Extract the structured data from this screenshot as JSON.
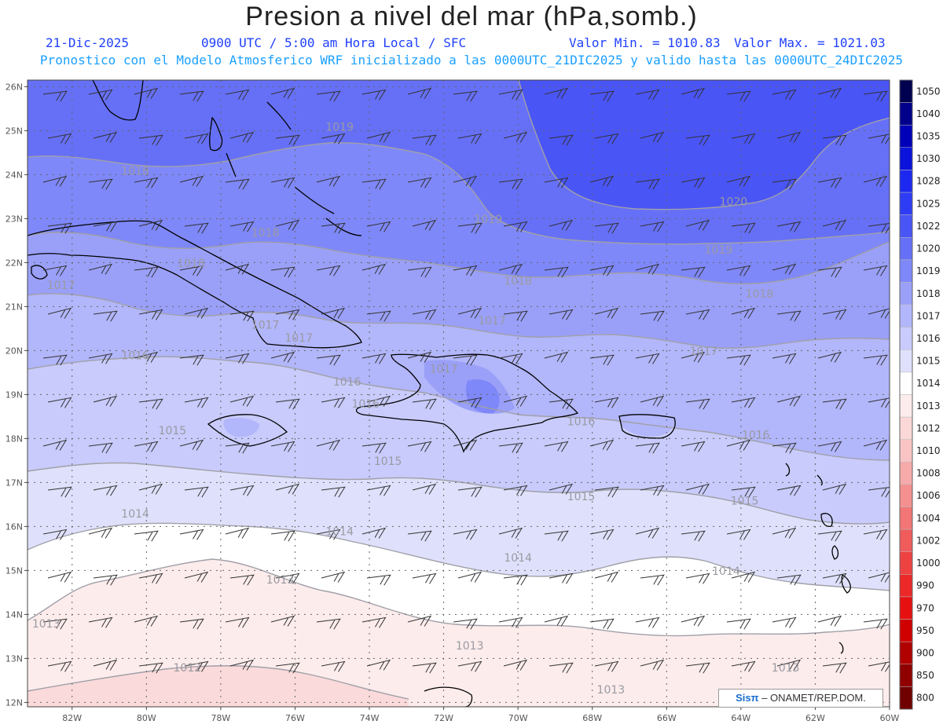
{
  "header": {
    "title": "Presion a nivel del mar (hPa,somb.)",
    "date": "21-Dic-2025",
    "time_info": "0900 UTC / 5:00 am Hora Local / SFC",
    "value_min": "Valor Min. = 1010.83",
    "value_max": "Valor Max. = 1021.03",
    "model_info": "Pronostico con el Modelo Atmosferico WRF inicializado a las 0000UTC_21DIC2025 y valido hasta las  0000UTC_24DIC2025"
  },
  "colors": {
    "title": "#222222",
    "subtitle_blue": "#2040ff",
    "subtitle_cyan": "#1aa0ff",
    "coast": "#000000",
    "contour": "#a0a0a8",
    "barb": "#333333",
    "grid": "#666666"
  },
  "map": {
    "lat_labels": [
      "26N",
      "25N",
      "24N",
      "23N",
      "22N",
      "21N",
      "20N",
      "19N",
      "18N",
      "17N",
      "16N",
      "15N",
      "14N",
      "13N",
      "12N"
    ],
    "lon_labels": [
      "82W",
      "80W",
      "78W",
      "76W",
      "74W",
      "72W",
      "70W",
      "68W",
      "66W",
      "64W",
      "62W",
      "60W"
    ],
    "contour_labels": [
      {
        "text": "1019",
        "lon": -74.8,
        "lat": 25.0
      },
      {
        "text": "1018",
        "lon": -80.3,
        "lat": 24.0
      },
      {
        "text": "1019",
        "lon": -70.8,
        "lat": 22.9
      },
      {
        "text": "1020",
        "lon": -64.2,
        "lat": 23.3
      },
      {
        "text": "1018",
        "lon": -76.8,
        "lat": 22.6
      },
      {
        "text": "1019",
        "lon": -64.6,
        "lat": 22.2
      },
      {
        "text": "1018",
        "lon": -78.8,
        "lat": 21.9
      },
      {
        "text": "1018",
        "lon": -70.0,
        "lat": 21.5
      },
      {
        "text": "1017",
        "lon": -82.3,
        "lat": 21.4
      },
      {
        "text": "1018",
        "lon": -63.5,
        "lat": 21.2
      },
      {
        "text": "1017",
        "lon": -70.7,
        "lat": 20.6
      },
      {
        "text": "1017",
        "lon": -76.8,
        "lat": 20.5
      },
      {
        "text": "1017",
        "lon": -75.9,
        "lat": 20.2
      },
      {
        "text": "1016",
        "lon": -80.3,
        "lat": 19.8
      },
      {
        "text": "1017",
        "lon": -65.0,
        "lat": 19.9
      },
      {
        "text": "1017",
        "lon": -72.0,
        "lat": 19.5
      },
      {
        "text": "1016",
        "lon": -74.6,
        "lat": 19.2
      },
      {
        "text": "1016",
        "lon": -74.1,
        "lat": 18.7
      },
      {
        "text": "1016",
        "lon": -68.3,
        "lat": 18.3
      },
      {
        "text": "1015",
        "lon": -79.3,
        "lat": 18.1
      },
      {
        "text": "1016",
        "lon": -63.6,
        "lat": 18.0
      },
      {
        "text": "1015",
        "lon": -73.5,
        "lat": 17.4
      },
      {
        "text": "1015",
        "lon": -68.3,
        "lat": 16.6
      },
      {
        "text": "1015",
        "lon": -63.9,
        "lat": 16.5
      },
      {
        "text": "1014",
        "lon": -80.3,
        "lat": 16.2
      },
      {
        "text": "1014",
        "lon": -74.8,
        "lat": 15.8
      },
      {
        "text": "1014",
        "lon": -70.0,
        "lat": 15.2
      },
      {
        "text": "1014",
        "lon": -64.4,
        "lat": 14.9
      },
      {
        "text": "1013",
        "lon": -76.4,
        "lat": 14.7
      },
      {
        "text": "1013",
        "lon": -82.7,
        "lat": 13.7
      },
      {
        "text": "1013",
        "lon": -71.3,
        "lat": 13.2
      },
      {
        "text": "1012",
        "lon": -78.9,
        "lat": 12.7
      },
      {
        "text": "1013",
        "lon": -62.8,
        "lat": 12.7
      },
      {
        "text": "1013",
        "lon": -67.5,
        "lat": 12.2
      }
    ]
  },
  "colorbar": {
    "labels": [
      "1050",
      "1040",
      "1035",
      "1030",
      "1028",
      "1025",
      "1022",
      "1020",
      "1019",
      "1018",
      "1017",
      "1016",
      "1015",
      "1014",
      "1013",
      "1012",
      "1010",
      "1008",
      "1006",
      "1004",
      "1002",
      "1000",
      "990",
      "970",
      "950",
      "900",
      "850",
      "800"
    ],
    "colors": [
      "#000050",
      "#00008a",
      "#0000b8",
      "#0a12dc",
      "#1c28f0",
      "#2e3cf6",
      "#4a55f6",
      "#6670f6",
      "#7f88f8",
      "#9aa0f8",
      "#b2b6fa",
      "#c8cbfb",
      "#dfe1fc",
      "#ffffff",
      "#fdecec",
      "#fad8d8",
      "#f8c4c4",
      "#f6aaaa",
      "#f49090",
      "#f27676",
      "#f05c5c",
      "#ee4242",
      "#ec2828",
      "#e61010",
      "#d00000",
      "#b00000",
      "#900000",
      "#700000"
    ]
  },
  "credit": {
    "logo": "Sisπ",
    "text": "– ONAMET/REP.DOM."
  }
}
